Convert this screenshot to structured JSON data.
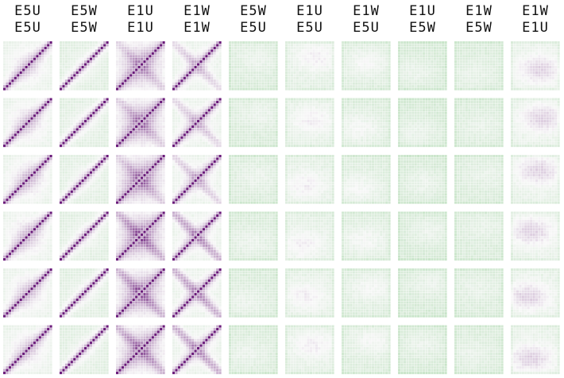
{
  "chart_data": {
    "type": "heatmap",
    "title": "",
    "columns": [
      {
        "top": "E5U",
        "bottom": "E5U"
      },
      {
        "top": "E5W",
        "bottom": "E5W"
      },
      {
        "top": "E1U",
        "bottom": "E1U"
      },
      {
        "top": "E1W",
        "bottom": "E1W"
      },
      {
        "top": "E5W",
        "bottom": "E5U"
      },
      {
        "top": "E1U",
        "bottom": "E5U"
      },
      {
        "top": "E1W",
        "bottom": "E5U"
      },
      {
        "top": "E1U",
        "bottom": "E5W"
      },
      {
        "top": "E1W",
        "bottom": "E5W"
      },
      {
        "top": "E1W",
        "bottom": "E1U"
      }
    ],
    "rows": 6,
    "matrix_size": 18,
    "colormap": {
      "negative": "#74c476",
      "zero": "#f7f7f7",
      "positive": "#6a1b7a"
    },
    "value_range": [
      -1,
      1
    ],
    "column_patterns": [
      {
        "kind": "self",
        "diag": 1.0,
        "band": 0.55,
        "block": 0.28,
        "cross": 0.0,
        "bg": -0.12
      },
      {
        "kind": "self",
        "diag": 1.0,
        "band": 0.5,
        "block": 0.12,
        "cross": 0.0,
        "bg": -0.18
      },
      {
        "kind": "self",
        "diag": 1.0,
        "band": 0.6,
        "block": 0.45,
        "cross": 0.35,
        "bg": -0.05
      },
      {
        "kind": "self",
        "diag": 1.0,
        "band": 0.55,
        "block": 0.15,
        "cross": 0.45,
        "bg": -0.12
      },
      {
        "kind": "cross",
        "blob": 0.12,
        "bg": -0.22
      },
      {
        "kind": "cross",
        "blob": 0.2,
        "bg": -0.15
      },
      {
        "kind": "cross",
        "blob": 0.18,
        "bg": -0.2
      },
      {
        "kind": "cross",
        "blob": 0.15,
        "bg": -0.25
      },
      {
        "kind": "cross",
        "blob": 0.1,
        "bg": -0.22
      },
      {
        "kind": "cross",
        "blob": 0.3,
        "bg": -0.12
      }
    ]
  }
}
